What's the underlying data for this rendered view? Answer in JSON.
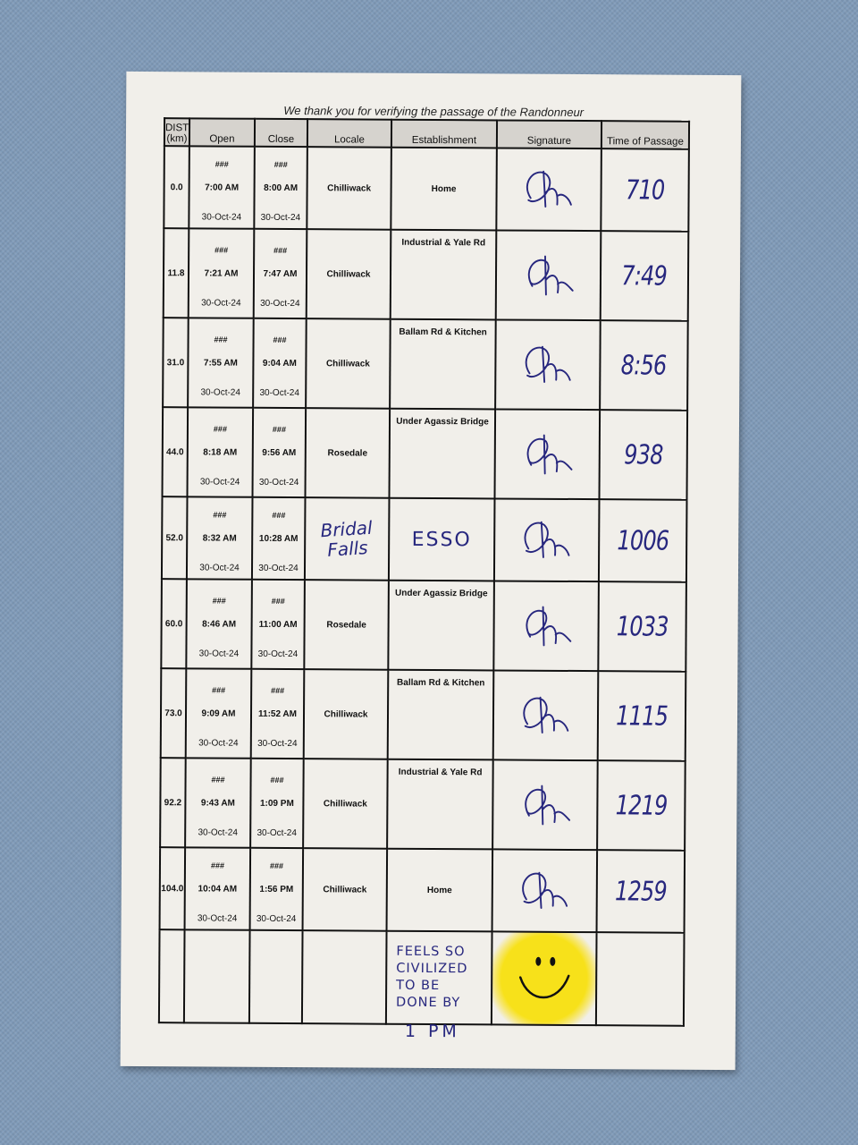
{
  "title": "We thank you for verifying the passage of the Randonneur",
  "headers": [
    "DIST (km)",
    "Open",
    "Close",
    "Locale",
    "Establishment",
    "Signature",
    "Time of Passage"
  ],
  "rows": [
    {
      "dist": "0.0",
      "open_hash": "###",
      "open_time": "7:00 AM",
      "open_date": "30-Oct-24",
      "close_hash": "###",
      "close_time": "8:00 AM",
      "close_date": "30-Oct-24",
      "locale": "Chilliwack",
      "establishment": "Home",
      "signature": "initials",
      "time_of_passage": "710"
    },
    {
      "dist": "11.8",
      "open_hash": "###",
      "open_time": "7:21 AM",
      "open_date": "30-Oct-24",
      "close_hash": "###",
      "close_time": "7:47 AM",
      "close_date": "30-Oct-24",
      "locale": "Chilliwack",
      "establishment": "Industrial & Yale Rd",
      "signature": "initials",
      "time_of_passage": "7:49"
    },
    {
      "dist": "31.0",
      "open_hash": "###",
      "open_time": "7:55 AM",
      "open_date": "30-Oct-24",
      "close_hash": "###",
      "close_time": "9:04 AM",
      "close_date": "30-Oct-24",
      "locale": "Chilliwack",
      "establishment": "Ballam Rd & Kitchen",
      "signature": "initials",
      "time_of_passage": "8:56"
    },
    {
      "dist": "44.0",
      "open_hash": "###",
      "open_time": "8:18 AM",
      "open_date": "30-Oct-24",
      "close_hash": "###",
      "close_time": "9:56 AM",
      "close_date": "30-Oct-24",
      "locale": "Rosedale",
      "establishment": "Under Agassiz Bridge",
      "signature": "initials",
      "time_of_passage": "938"
    },
    {
      "dist": "52.0",
      "open_hash": "###",
      "open_time": "8:32 AM",
      "open_date": "30-Oct-24",
      "close_hash": "###",
      "close_time": "10:28 AM",
      "close_date": "30-Oct-24",
      "locale": "Bridal Falls",
      "establishment": "ESSO",
      "signature": "initials",
      "time_of_passage": "1006",
      "handwritten_locale": true
    },
    {
      "dist": "60.0",
      "open_hash": "###",
      "open_time": "8:46 AM",
      "open_date": "30-Oct-24",
      "close_hash": "###",
      "close_time": "11:00 AM",
      "close_date": "30-Oct-24",
      "locale": "Rosedale",
      "establishment": "Under Agassiz Bridge",
      "signature": "initials",
      "time_of_passage": "1033"
    },
    {
      "dist": "73.0",
      "open_hash": "###",
      "open_time": "9:09 AM",
      "open_date": "30-Oct-24",
      "close_hash": "###",
      "close_time": "11:52 AM",
      "close_date": "30-Oct-24",
      "locale": "Chilliwack",
      "establishment": "Ballam Rd & Kitchen",
      "signature": "initials",
      "time_of_passage": "1115"
    },
    {
      "dist": "92.2",
      "open_hash": "###",
      "open_time": "9:43 AM",
      "open_date": "30-Oct-24",
      "close_hash": "###",
      "close_time": "1:09 PM",
      "close_date": "30-Oct-24",
      "locale": "Chilliwack",
      "establishment": "Industrial & Yale Rd",
      "signature": "initials",
      "time_of_passage": "1219"
    },
    {
      "dist": "104.0",
      "open_hash": "###",
      "open_time": "10:04 AM",
      "open_date": "30-Oct-24",
      "close_hash": "###",
      "close_time": "1:56 PM",
      "close_date": "30-Oct-24",
      "locale": "Chilliwack",
      "establishment": "Home",
      "signature": "initials",
      "time_of_passage": "1259"
    }
  ],
  "note_lines": [
    "FEELS SO",
    "CIVILIZED",
    "TO BE",
    "DONE BY"
  ],
  "note_tail": "1 PM",
  "colors": {
    "ink": "#27277e",
    "highlighter": "#f7e11a",
    "paper": "#f1efea",
    "background": "#7f9ab8"
  }
}
